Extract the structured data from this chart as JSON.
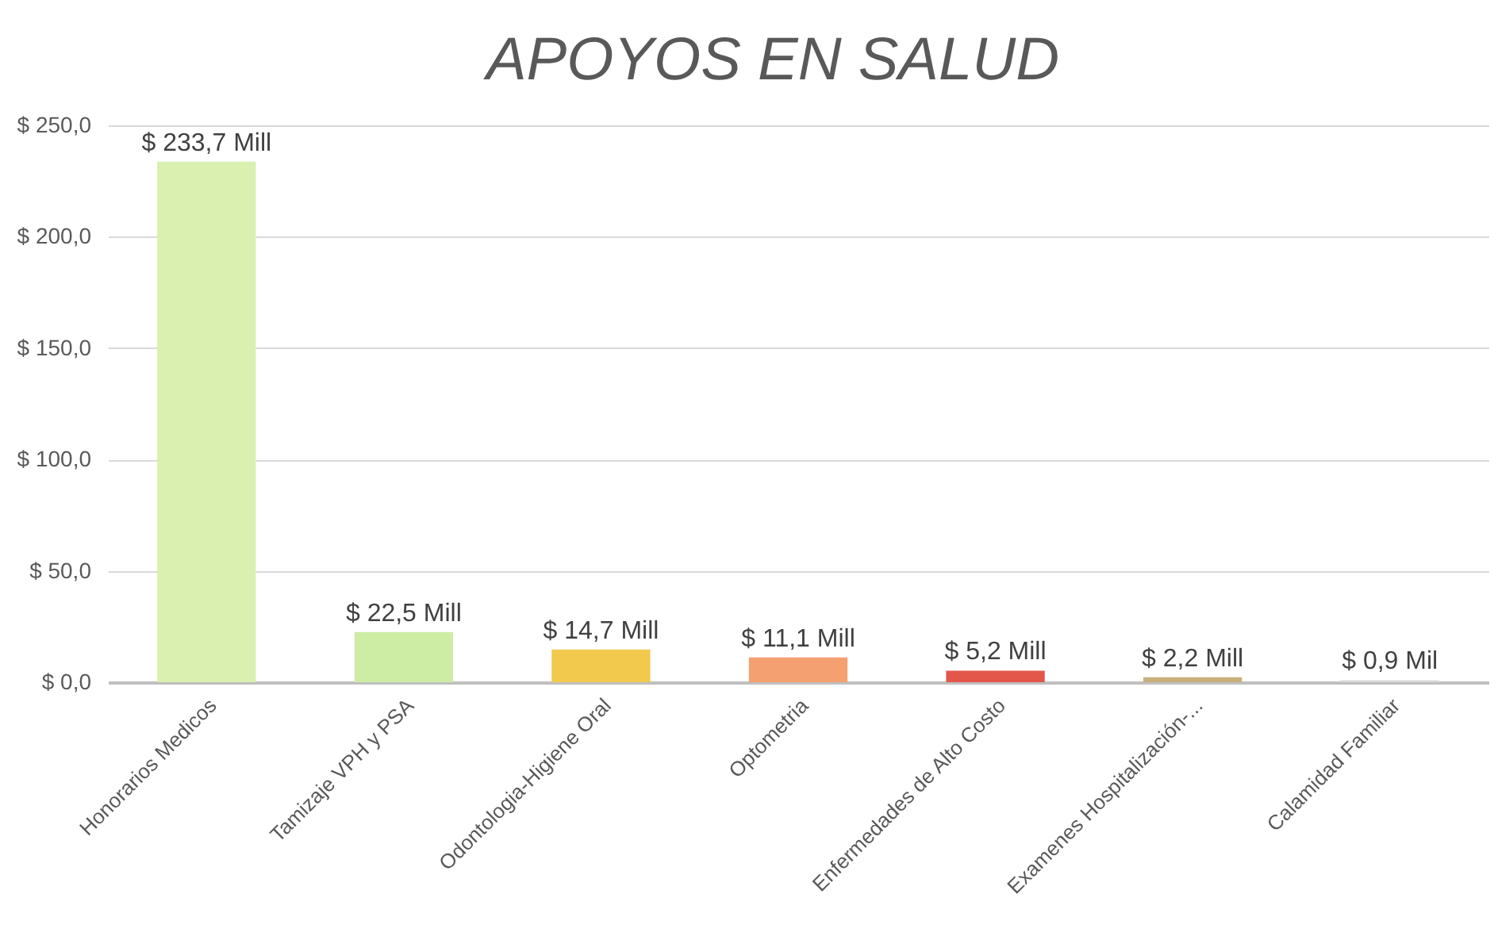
{
  "chart_data": {
    "type": "bar",
    "title": "APOYOS EN SALUD",
    "categories": [
      "Honorarios Medicos",
      "Tamizaje VPH y PSA",
      "Odontologia-Higiene Oral",
      "Optometria",
      "Enfermedades de Alto Costo",
      "Examenes Hospitalización-...",
      "Calamidad Familiar"
    ],
    "values": [
      233.7,
      22.5,
      14.7,
      11.1,
      5.2,
      2.2,
      0.9
    ],
    "colors": [
      "#d9f0b0",
      "#cdeca4",
      "#f2c94c",
      "#f4a070",
      "#e2574a",
      "#c9b07a",
      "#d9d9d9"
    ],
    "value_labels": [
      "$ 233,7 Mill",
      "$ 22,5 Mill",
      "$ 14,7 Mill",
      "$ 11,1 Mill",
      "$ 5,2 Mill",
      "$ 2,2 Mill",
      "$ 0,9 Mil"
    ],
    "ylim": [
      0,
      250
    ],
    "yticks": [
      {
        "value": 0,
        "label": "$ 0,0"
      },
      {
        "value": 50,
        "label": "$ 50,0"
      },
      {
        "value": 100,
        "label": "$ 100,0"
      },
      {
        "value": 150,
        "label": "$ 150,0"
      },
      {
        "value": 200,
        "label": "$ 200,0"
      },
      {
        "value": 250,
        "label": "$ 250,0"
      }
    ],
    "grid": "y"
  }
}
